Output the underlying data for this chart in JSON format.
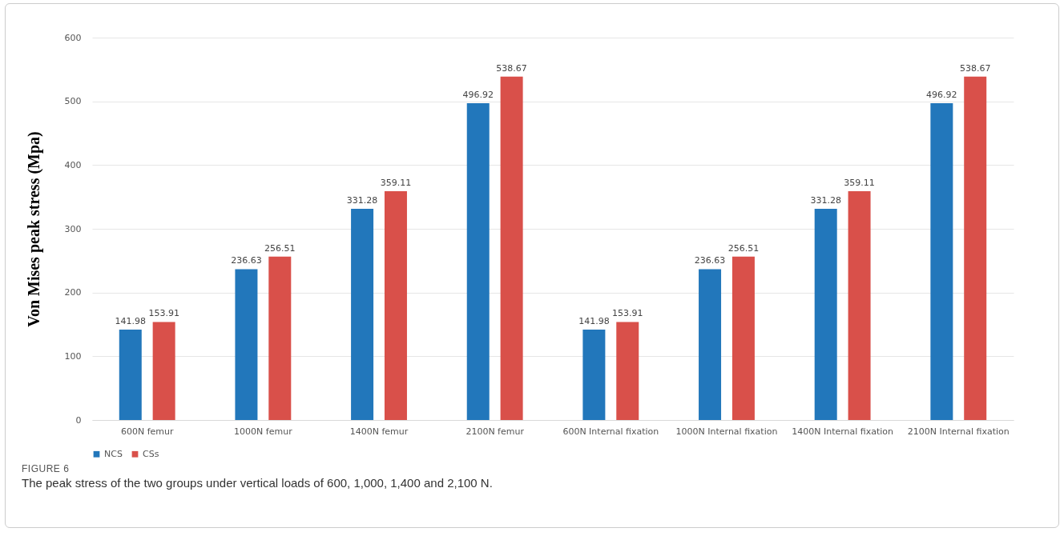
{
  "chart_data": {
    "type": "bar",
    "ylabel": "Von Mises peak stress (Mpa)",
    "categories": [
      "600N femur",
      "1000N femur",
      "1400N femur",
      "2100N femur",
      "600N Internal fixation",
      "1000N Internal fixation",
      "1400N Internal fixation",
      "2100N Internal fixation"
    ],
    "series": [
      {
        "name": "NCS",
        "color": "#2277bb",
        "values": [
          141.98,
          236.63,
          331.28,
          496.92,
          141.98,
          236.63,
          331.28,
          496.92
        ]
      },
      {
        "name": "CSs",
        "color": "#d9504a",
        "values": [
          153.91,
          256.51,
          359.11,
          538.67,
          153.91,
          256.51,
          359.11,
          538.67
        ]
      }
    ],
    "ylim": [
      0,
      600
    ],
    "yticks": [
      0,
      100,
      200,
      300,
      400,
      500,
      600
    ],
    "grid": "y",
    "legend": "bottom",
    "data_labels": true,
    "annotations": [
      "FIGURE 6",
      "The peak stress of the two groups under vertical loads of 600, 1,000, 1,400 and 2,100 N."
    ]
  }
}
